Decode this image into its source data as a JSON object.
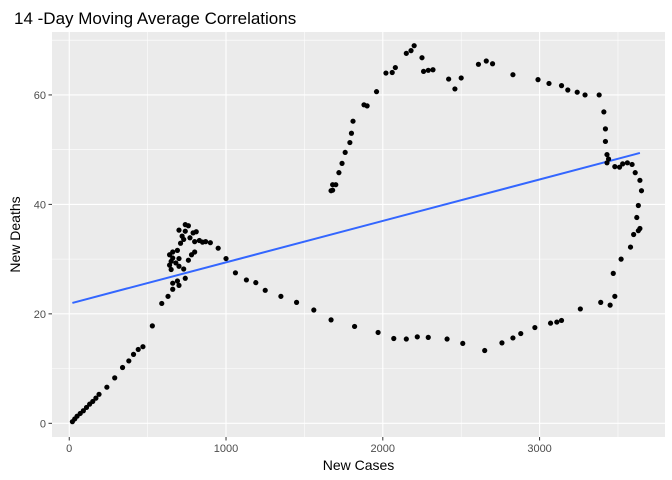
{
  "chart_data": {
    "type": "scatter",
    "title": "14 -Day Moving Average Correlations",
    "xlabel": "New  Cases",
    "ylabel": "New Deaths",
    "xlim": [
      -110,
      3800
    ],
    "ylim": [
      -2.5,
      71.5
    ],
    "xticks": [
      0,
      1000,
      2000,
      3000
    ],
    "yticks": [
      0,
      20,
      40,
      60
    ],
    "x_tick_labels": [
      "0",
      "1000",
      "2000",
      "3000"
    ],
    "y_tick_labels": [
      "0",
      "20",
      "40",
      "60"
    ],
    "grid": true,
    "background": "#ebebeb",
    "point_color": "#000000",
    "trend_color": "#3366ff",
    "trend_line": {
      "x": [
        20,
        3640
      ],
      "y": [
        22.0,
        49.4
      ]
    },
    "points": [
      [
        20,
        0.3
      ],
      [
        35,
        0.8
      ],
      [
        50,
        1.3
      ],
      [
        70,
        1.8
      ],
      [
        90,
        2.3
      ],
      [
        110,
        2.9
      ],
      [
        130,
        3.5
      ],
      [
        150,
        4.0
      ],
      [
        170,
        4.6
      ],
      [
        190,
        5.3
      ],
      [
        240,
        6.6
      ],
      [
        290,
        8.3
      ],
      [
        340,
        10.2
      ],
      [
        380,
        11.4
      ],
      [
        410,
        12.6
      ],
      [
        440,
        13.5
      ],
      [
        470,
        14.0
      ],
      [
        530,
        17.8
      ],
      [
        590,
        21.9
      ],
      [
        630,
        23.2
      ],
      [
        660,
        24.5
      ],
      [
        650,
        28.1
      ],
      [
        640,
        28.9
      ],
      [
        650,
        29.6
      ],
      [
        660,
        30.2
      ],
      [
        640,
        30.8
      ],
      [
        660,
        31.3
      ],
      [
        680,
        29.3
      ],
      [
        690,
        31.6
      ],
      [
        700,
        30.1
      ],
      [
        710,
        32.9
      ],
      [
        730,
        33.6
      ],
      [
        700,
        35.3
      ],
      [
        720,
        34.2
      ],
      [
        740,
        35.1
      ],
      [
        760,
        36.1
      ],
      [
        740,
        36.3
      ],
      [
        790,
        34.8
      ],
      [
        810,
        35.0
      ],
      [
        770,
        33.9
      ],
      [
        800,
        33.2
      ],
      [
        830,
        33.4
      ],
      [
        850,
        33.1
      ],
      [
        870,
        33.2
      ],
      [
        780,
        30.8
      ],
      [
        800,
        31.3
      ],
      [
        760,
        29.8
      ],
      [
        700,
        28.7
      ],
      [
        730,
        28.2
      ],
      [
        740,
        26.5
      ],
      [
        690,
        26.0
      ],
      [
        660,
        25.6
      ],
      [
        700,
        25.2
      ],
      [
        900,
        33.0
      ],
      [
        950,
        32.0
      ],
      [
        1000,
        30.1
      ],
      [
        1060,
        27.5
      ],
      [
        1130,
        26.2
      ],
      [
        1190,
        25.7
      ],
      [
        1250,
        24.3
      ],
      [
        1350,
        23.2
      ],
      [
        1450,
        22.1
      ],
      [
        1560,
        20.7
      ],
      [
        1670,
        18.9
      ],
      [
        1820,
        17.7
      ],
      [
        1970,
        16.6
      ],
      [
        2070,
        15.5
      ],
      [
        2150,
        15.4
      ],
      [
        2220,
        15.8
      ],
      [
        2290,
        15.7
      ],
      [
        2410,
        15.4
      ],
      [
        2510,
        14.6
      ],
      [
        2650,
        13.3
      ],
      [
        2760,
        14.7
      ],
      [
        2830,
        15.6
      ],
      [
        2880,
        16.4
      ],
      [
        2970,
        17.5
      ],
      [
        3070,
        18.3
      ],
      [
        3110,
        18.5
      ],
      [
        3140,
        18.8
      ],
      [
        3260,
        20.9
      ],
      [
        3390,
        22.1
      ],
      [
        3450,
        21.6
      ],
      [
        3480,
        23.2
      ],
      [
        3470,
        27.4
      ],
      [
        3520,
        30.0
      ],
      [
        3580,
        32.2
      ],
      [
        3600,
        34.5
      ],
      [
        3630,
        35.2
      ],
      [
        3640,
        35.6
      ],
      [
        3620,
        37.6
      ],
      [
        3630,
        39.8
      ],
      [
        3650,
        42.5
      ],
      [
        3640,
        44.4
      ],
      [
        3610,
        45.8
      ],
      [
        3590,
        47.3
      ],
      [
        3560,
        47.6
      ],
      [
        3530,
        47.4
      ],
      [
        3510,
        46.8
      ],
      [
        3480,
        46.9
      ],
      [
        3430,
        47.6
      ],
      [
        3440,
        48.3
      ],
      [
        3430,
        49.1
      ],
      [
        3420,
        51.5
      ],
      [
        3420,
        53.8
      ],
      [
        3410,
        56.9
      ],
      [
        3380,
        60.0
      ],
      [
        3290,
        60.0
      ],
      [
        3240,
        60.5
      ],
      [
        3180,
        60.9
      ],
      [
        3140,
        61.7
      ],
      [
        3060,
        62.1
      ],
      [
        2990,
        62.8
      ],
      [
        2830,
        63.7
      ],
      [
        2700,
        65.7
      ],
      [
        2660,
        66.2
      ],
      [
        2610,
        65.6
      ],
      [
        2500,
        63.1
      ],
      [
        2460,
        61.1
      ],
      [
        2420,
        62.9
      ],
      [
        2320,
        64.6
      ],
      [
        2290,
        64.5
      ],
      [
        2260,
        64.3
      ],
      [
        2250,
        66.8
      ],
      [
        2200,
        69.0
      ],
      [
        2180,
        68.1
      ],
      [
        2150,
        67.6
      ],
      [
        2080,
        65.0
      ],
      [
        2060,
        64.1
      ],
      [
        2020,
        64.0
      ],
      [
        1960,
        60.6
      ],
      [
        1900,
        58.0
      ],
      [
        1880,
        58.2
      ],
      [
        1810,
        55.2
      ],
      [
        1800,
        53.0
      ],
      [
        1790,
        51.3
      ],
      [
        1760,
        49.5
      ],
      [
        1740,
        47.5
      ],
      [
        1720,
        45.8
      ],
      [
        1700,
        43.6
      ],
      [
        1680,
        42.6
      ],
      [
        1680,
        43.6
      ],
      [
        1670,
        42.5
      ]
    ]
  }
}
